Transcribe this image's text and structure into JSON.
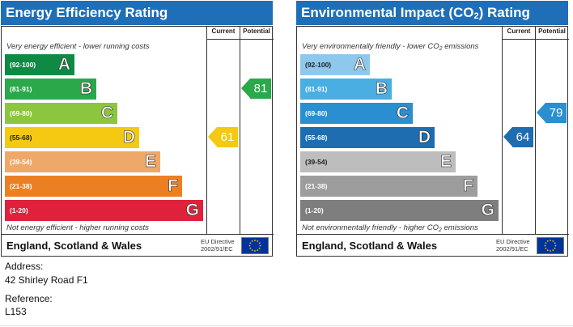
{
  "energy_panel": {
    "title": "Energy Efficiency Rating",
    "col_current": "Current",
    "col_potential": "Potential",
    "note_top": "Very energy efficient - lower running costs",
    "note_bottom": "Not energy efficient - higher running costs",
    "bands": [
      {
        "range": "(92-100)",
        "letter": "A",
        "color": "#0f8a45"
      },
      {
        "range": "(81-91)",
        "letter": "B",
        "color": "#2aa84a"
      },
      {
        "range": "(69-80)",
        "letter": "C",
        "color": "#8cc63f"
      },
      {
        "range": "(55-68)",
        "letter": "D",
        "color": "#f5c812"
      },
      {
        "range": "(39-54)",
        "letter": "E",
        "color": "#f0a868"
      },
      {
        "range": "(21-38)",
        "letter": "F",
        "color": "#ec7f22"
      },
      {
        "range": "(1-20)",
        "letter": "G",
        "color": "#e0213c"
      }
    ],
    "current": {
      "value": "61",
      "band": "D",
      "color": "#f5c812"
    },
    "potential": {
      "value": "81",
      "band": "B",
      "color": "#2aa84a"
    },
    "region": "England, Scotland & Wales",
    "directive_line1": "EU Directive",
    "directive_line2": "2002/91/EC"
  },
  "environment_panel": {
    "title_main": "Environmental Impact (CO",
    "title_sub": "2",
    "title_end": ") Rating",
    "col_current": "Current",
    "col_potential": "Potential",
    "note_top_main": "Very environmentally friendly - lower CO",
    "note_top_sub": "2",
    "note_top_end": " emissions",
    "note_bottom_main": "Not environmentally friendly - higher CO",
    "note_bottom_sub": "2",
    "note_bottom_end": " emissions",
    "bands": [
      {
        "range": "(92-100)",
        "letter": "A",
        "color": "#8ec9ed"
      },
      {
        "range": "(81-91)",
        "letter": "B",
        "color": "#4aaee3"
      },
      {
        "range": "(69-80)",
        "letter": "C",
        "color": "#2a8fd0"
      },
      {
        "range": "(55-68)",
        "letter": "D",
        "color": "#1f6db1"
      },
      {
        "range": "(39-54)",
        "letter": "E",
        "color": "#bdbdbd"
      },
      {
        "range": "(21-38)",
        "letter": "F",
        "color": "#9d9d9d"
      },
      {
        "range": "(1-20)",
        "letter": "G",
        "color": "#7e7e7e"
      }
    ],
    "current": {
      "value": "64",
      "band": "D",
      "color": "#1f6db1"
    },
    "potential": {
      "value": "79",
      "band": "C",
      "color": "#2a8fd0"
    },
    "region": "England, Scotland & Wales",
    "directive_line1": "EU Directive",
    "directive_line2": "2002/91/EC"
  },
  "address_label": "Address:",
  "address_value": "42 Shirley Road F1",
  "reference_label": "Reference:",
  "reference_value": "L153"
}
